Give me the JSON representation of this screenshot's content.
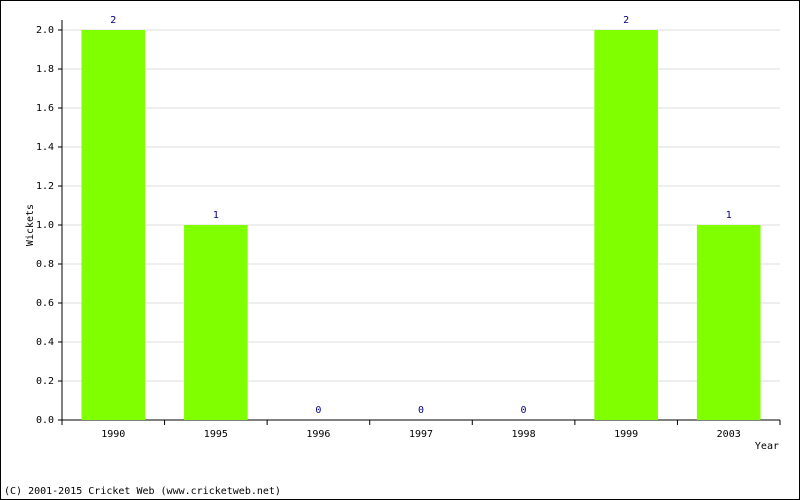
{
  "chart_data": {
    "type": "bar",
    "categories": [
      "1990",
      "1995",
      "1996",
      "1997",
      "1998",
      "1999",
      "2003"
    ],
    "values": [
      2,
      1,
      0,
      0,
      0,
      2,
      1
    ],
    "color": "#80ff00",
    "y_label": "Wickets",
    "x_label": "Year",
    "footer": "(C) 2001-2015 Cricket Web (www.cricketweb.net)",
    "ylim": [
      0,
      2.0
    ],
    "yticks": [
      {
        "value": 0,
        "label": "0.0"
      },
      {
        "value": 0.2,
        "label": "0.2"
      },
      {
        "value": 0.4,
        "label": "0.4"
      },
      {
        "value": 0.6,
        "label": "0.6"
      },
      {
        "value": 0.8,
        "label": "0.8"
      },
      {
        "value": 1.0,
        "label": "1.0"
      },
      {
        "value": 1.2,
        "label": "1.2"
      },
      {
        "value": 1.4,
        "label": "1.4"
      },
      {
        "value": 1.6,
        "label": "1.6"
      },
      {
        "value": 1.8,
        "label": "1.8"
      },
      {
        "value": 2.0,
        "label": "2.0"
      }
    ],
    "grid": true
  }
}
